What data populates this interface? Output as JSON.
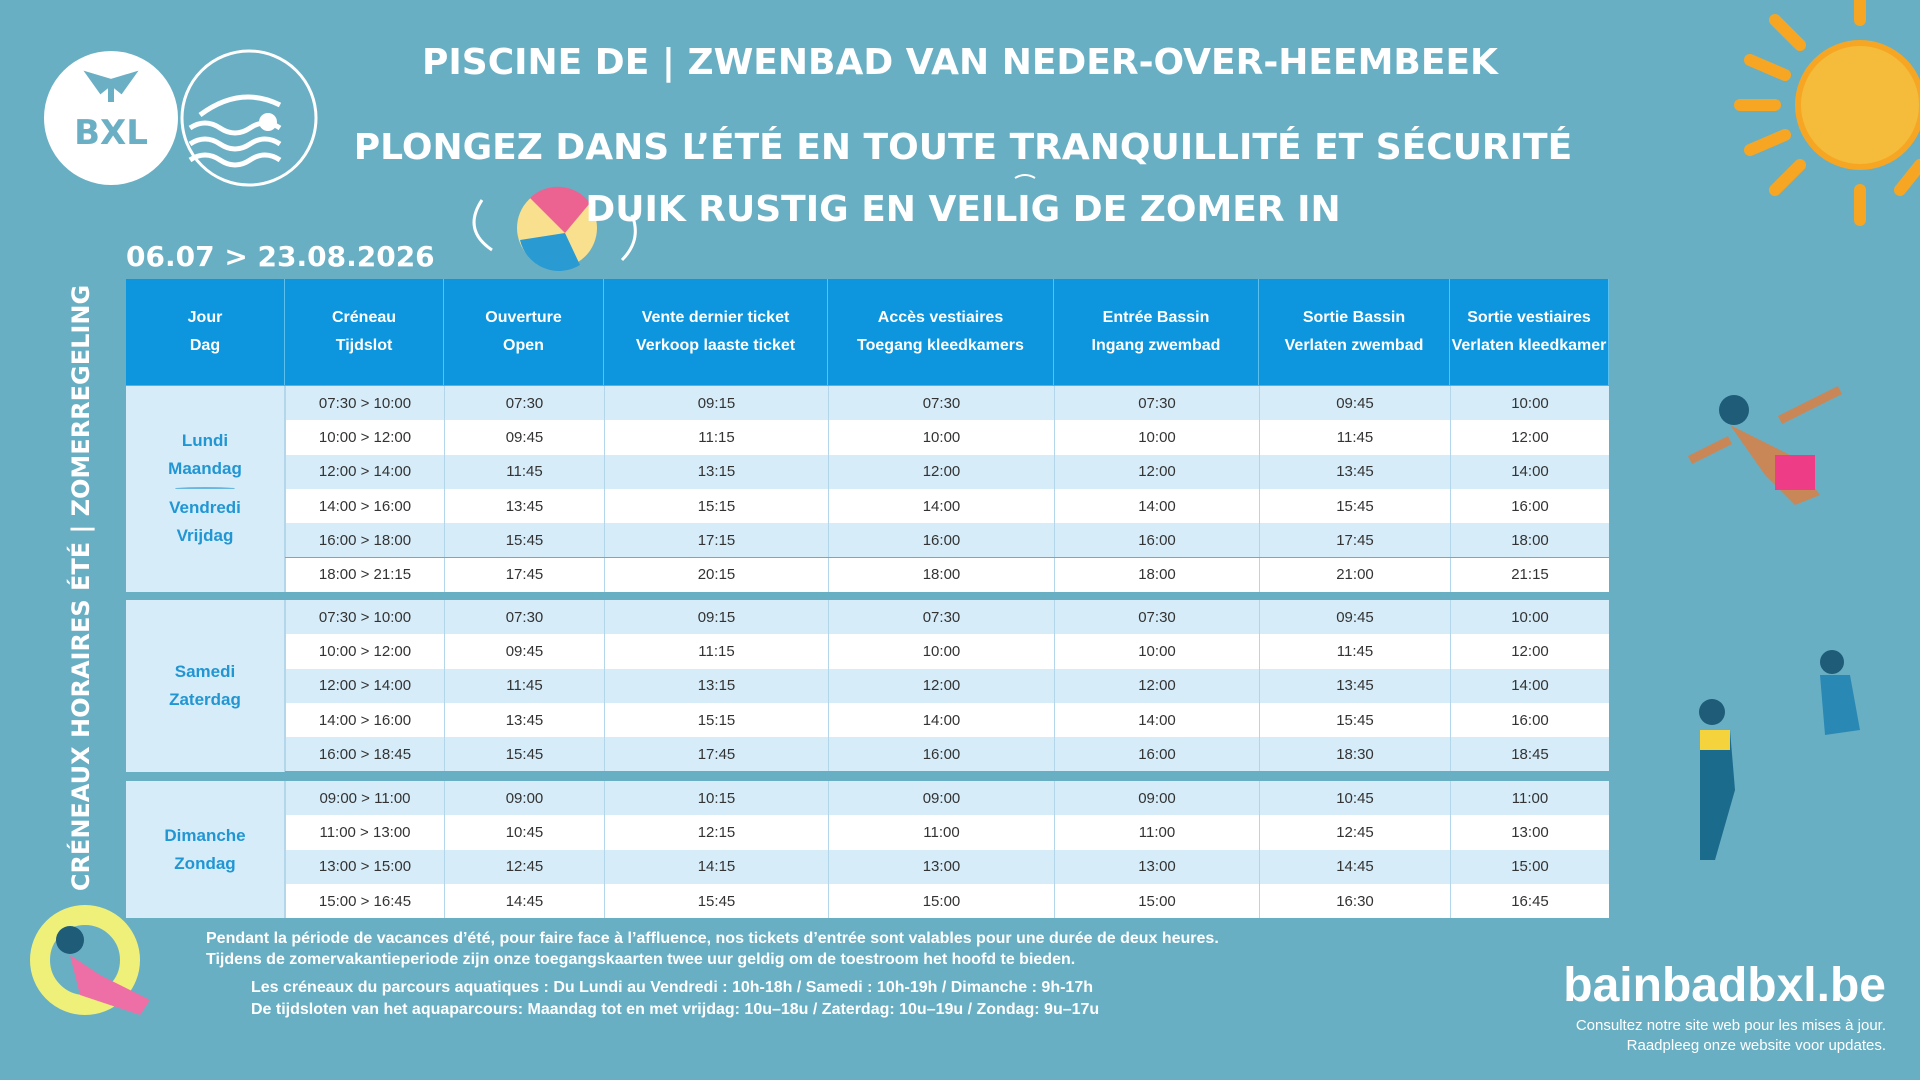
{
  "header": {
    "line1": "PISCINE DE | ZWENBAD VAN NEDER-OVER-HEEMBEEK",
    "line2": "PLONGEZ DANS L’ÉTÉ EN TOUTE  TRANQUILLITÉ ET SÉCURITÉ",
    "line3": "DUIK RUSTIG EN VEILIG  DE ZOMER IN",
    "dates": "06.07 > 23.08.2026",
    "side_label": "CRÉNEAUX HORAIRES ÉTÉ | ZOMERREGELING",
    "logo": "BXL"
  },
  "table": {
    "columns": [
      [
        "Jour",
        "Dag"
      ],
      [
        "Créneau",
        "Tijdslot"
      ],
      [
        "Ouverture",
        "Open"
      ],
      [
        "Vente dernier ticket",
        "Verkoop laaste ticket"
      ],
      [
        "Accès vestiaires",
        "Toegang kleedkamers"
      ],
      [
        "Entrée  Bassin",
        "Ingang zwembad"
      ],
      [
        "Sortie  Bassin",
        "Verlaten zwembad"
      ],
      [
        "Sortie vestiaires",
        "Verlaten kleedkamer"
      ]
    ],
    "groups": [
      {
        "days": [
          "Lundi",
          "Maandag",
          "Vendredi",
          "Vrijdag"
        ],
        "rows": [
          [
            "07:30 > 10:00",
            "07:30",
            "09:15",
            "07:30",
            "07:30",
            "09:45",
            "10:00"
          ],
          [
            "10:00 > 12:00",
            "09:45",
            "11:15",
            "10:00",
            "10:00",
            "11:45",
            "12:00"
          ],
          [
            "12:00 > 14:00",
            "11:45",
            "13:15",
            "12:00",
            "12:00",
            "13:45",
            "14:00"
          ],
          [
            "14:00 > 16:00",
            "13:45",
            "15:15",
            "14:00",
            "14:00",
            "15:45",
            "16:00"
          ],
          [
            "16:00 > 18:00",
            "15:45",
            "17:15",
            "16:00",
            "16:00",
            "17:45",
            "18:00"
          ],
          [
            "18:00 > 21:15",
            "17:45",
            "20:15",
            "18:00",
            "18:00",
            "21:00",
            "21:15"
          ]
        ]
      },
      {
        "days": [
          "Samedi",
          "Zaterdag"
        ],
        "rows": [
          [
            "07:30 > 10:00",
            "07:30",
            "09:15",
            "07:30",
            "07:30",
            "09:45",
            "10:00"
          ],
          [
            "10:00 > 12:00",
            "09:45",
            "11:15",
            "10:00",
            "10:00",
            "11:45",
            "12:00"
          ],
          [
            "12:00 > 14:00",
            "11:45",
            "13:15",
            "12:00",
            "12:00",
            "13:45",
            "14:00"
          ],
          [
            "14:00 > 16:00",
            "13:45",
            "15:15",
            "14:00",
            "14:00",
            "15:45",
            "16:00"
          ],
          [
            "16:00 > 18:45",
            "15:45",
            "17:45",
            "16:00",
            "16:00",
            "18:30",
            "18:45"
          ]
        ]
      },
      {
        "days": [
          "Dimanche",
          "Zondag"
        ],
        "rows": [
          [
            "09:00 > 11:00",
            "09:00",
            "10:15",
            "09:00",
            "09:00",
            "10:45",
            "11:00"
          ],
          [
            "11:00 > 13:00",
            "10:45",
            "12:15",
            "11:00",
            "11:00",
            "12:45",
            "13:00"
          ],
          [
            "13:00 > 15:00",
            "12:45",
            "14:15",
            "13:00",
            "13:00",
            "14:45",
            "15:00"
          ],
          [
            "15:00 > 16:45",
            "14:45",
            "15:45",
            "15:00",
            "15:00",
            "16:30",
            "16:45"
          ]
        ]
      }
    ]
  },
  "footer": {
    "notes": [
      "Pendant la période de vacances d’été, pour faire face à l’affluence, nos tickets d’entrée sont valables pour une durée de deux heures.",
      "Tijdens de zomervakantieperiode zijn onze toegangskaarten twee uur geldig om de toestroom het hoofd te bieden."
    ],
    "parcours": [
      "Les créneaux du parcours aquatiques : Du Lundi au Vendredi : 10h-18h / Samedi : 10h-19h / Dimanche : 9h-17h",
      "De tijdsloten van het aquaparcours: Maandag tot en met vrijdag: 10u–18u / Zaterdag: 10u–19u / Zondag: 9u–17u"
    ],
    "website": "bainbadbxl.be",
    "website_notes": [
      "Consultez notre site web pour les mises à jour.",
      "Raadpleeg onze website voor updates."
    ]
  }
}
